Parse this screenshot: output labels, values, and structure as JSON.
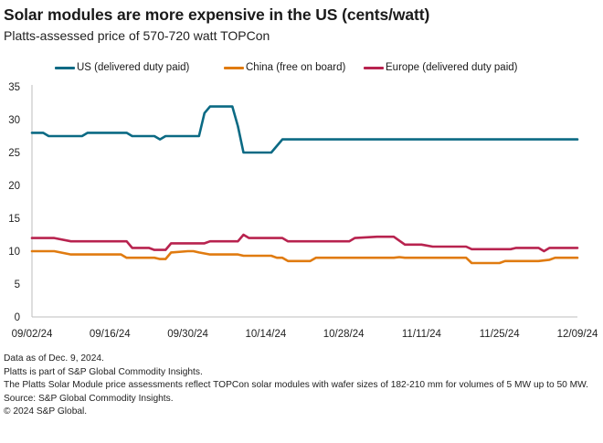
{
  "header": {
    "title": "Solar modules are more expensive in the US (cents/watt)",
    "subtitle": "Platts-assessed price of 570-720 watt TOPCon"
  },
  "legend": [
    {
      "label": "US (delivered duty paid)",
      "color": "#0b6a84"
    },
    {
      "label": "China (free on board)",
      "color": "#e07b10"
    },
    {
      "label": "Europe (delivered duty paid)",
      "color": "#b8234f"
    }
  ],
  "footer": {
    "lines": [
      "Data as of Dec. 9, 2024.",
      "Platts is part of S&P Global Commodity Insights.",
      "The Platts Solar Module price assessments reflect TOPCon solar modules with wafer sizes of 182-210 mm for volumes of 5 MW up to 50 MW.",
      "Source: S&P Global Commodity Insights.",
      "© 2024 S&P Global."
    ]
  },
  "chart_data": {
    "type": "line",
    "title": "Solar modules are more expensive in the US (cents/watt)",
    "subtitle": "Platts-assessed price of 570-720 watt TOPCon",
    "xlabel": "",
    "ylabel": "",
    "x_range": [
      "2024-09-02",
      "2024-12-09"
    ],
    "ylim": [
      0,
      35
    ],
    "y_ticks": [
      0,
      5,
      10,
      15,
      20,
      25,
      30,
      35
    ],
    "x_ticks": [
      "09/02/24",
      "09/16/24",
      "09/30/24",
      "10/14/24",
      "10/28/24",
      "11/11/24",
      "11/25/24",
      "12/09/24"
    ],
    "x_tick_dates": [
      "2024-09-02",
      "2024-09-16",
      "2024-09-30",
      "2024-10-14",
      "2024-10-28",
      "2024-11-11",
      "2024-11-25",
      "2024-12-09"
    ],
    "grid": false,
    "legend_position": "top",
    "series": [
      {
        "name": "US (delivered duty paid)",
        "color": "#0b6a84",
        "points": [
          [
            "2024-09-02",
            28
          ],
          [
            "2024-09-04",
            28
          ],
          [
            "2024-09-05",
            27.5
          ],
          [
            "2024-09-11",
            27.5
          ],
          [
            "2024-09-12",
            28
          ],
          [
            "2024-09-19",
            28
          ],
          [
            "2024-09-20",
            27.5
          ],
          [
            "2024-09-24",
            27.5
          ],
          [
            "2024-09-25",
            27
          ],
          [
            "2024-09-26",
            27.5
          ],
          [
            "2024-10-02",
            27.5
          ],
          [
            "2024-10-03",
            31
          ],
          [
            "2024-10-04",
            32
          ],
          [
            "2024-10-08",
            32
          ],
          [
            "2024-10-09",
            29
          ],
          [
            "2024-10-10",
            25
          ],
          [
            "2024-10-15",
            25
          ],
          [
            "2024-10-17",
            27
          ],
          [
            "2024-12-09",
            27
          ]
        ]
      },
      {
        "name": "China (free on board)",
        "color": "#e07b10",
        "points": [
          [
            "2024-09-02",
            10
          ],
          [
            "2024-09-06",
            10
          ],
          [
            "2024-09-09",
            9.5
          ],
          [
            "2024-09-18",
            9.5
          ],
          [
            "2024-09-19",
            9
          ],
          [
            "2024-09-24",
            9
          ],
          [
            "2024-09-25",
            8.8
          ],
          [
            "2024-09-26",
            8.8
          ],
          [
            "2024-09-27",
            9.8
          ],
          [
            "2024-09-30",
            10
          ],
          [
            "2024-10-01",
            10
          ],
          [
            "2024-10-02",
            9.8
          ],
          [
            "2024-10-04",
            9.5
          ],
          [
            "2024-10-09",
            9.5
          ],
          [
            "2024-10-10",
            9.3
          ],
          [
            "2024-10-15",
            9.3
          ],
          [
            "2024-10-16",
            9
          ],
          [
            "2024-10-17",
            9
          ],
          [
            "2024-10-18",
            8.5
          ],
          [
            "2024-10-22",
            8.5
          ],
          [
            "2024-10-23",
            9
          ],
          [
            "2024-11-06",
            9
          ],
          [
            "2024-11-07",
            9.1
          ],
          [
            "2024-11-08",
            9
          ],
          [
            "2024-11-19",
            9
          ],
          [
            "2024-11-20",
            8.2
          ],
          [
            "2024-11-25",
            8.2
          ],
          [
            "2024-11-26",
            8.5
          ],
          [
            "2024-12-02",
            8.5
          ],
          [
            "2024-12-04",
            8.7
          ],
          [
            "2024-12-05",
            9
          ],
          [
            "2024-12-09",
            9
          ]
        ]
      },
      {
        "name": "Europe (delivered duty paid)",
        "color": "#b8234f",
        "points": [
          [
            "2024-09-02",
            12
          ],
          [
            "2024-09-06",
            12
          ],
          [
            "2024-09-09",
            11.5
          ],
          [
            "2024-09-19",
            11.5
          ],
          [
            "2024-09-20",
            10.5
          ],
          [
            "2024-09-23",
            10.5
          ],
          [
            "2024-09-24",
            10.2
          ],
          [
            "2024-09-26",
            10.2
          ],
          [
            "2024-09-27",
            11.2
          ],
          [
            "2024-10-03",
            11.2
          ],
          [
            "2024-10-04",
            11.5
          ],
          [
            "2024-10-09",
            11.5
          ],
          [
            "2024-10-10",
            12.5
          ],
          [
            "2024-10-11",
            12
          ],
          [
            "2024-10-17",
            12
          ],
          [
            "2024-10-18",
            11.5
          ],
          [
            "2024-10-29",
            11.5
          ],
          [
            "2024-10-30",
            12
          ],
          [
            "2024-11-03",
            12.2
          ],
          [
            "2024-11-06",
            12.2
          ],
          [
            "2024-11-08",
            11
          ],
          [
            "2024-11-11",
            11
          ],
          [
            "2024-11-13",
            10.7
          ],
          [
            "2024-11-19",
            10.7
          ],
          [
            "2024-11-20",
            10.3
          ],
          [
            "2024-11-27",
            10.3
          ],
          [
            "2024-11-28",
            10.5
          ],
          [
            "2024-12-02",
            10.5
          ],
          [
            "2024-12-03",
            10
          ],
          [
            "2024-12-04",
            10.5
          ],
          [
            "2024-12-09",
            10.5
          ]
        ]
      }
    ]
  }
}
